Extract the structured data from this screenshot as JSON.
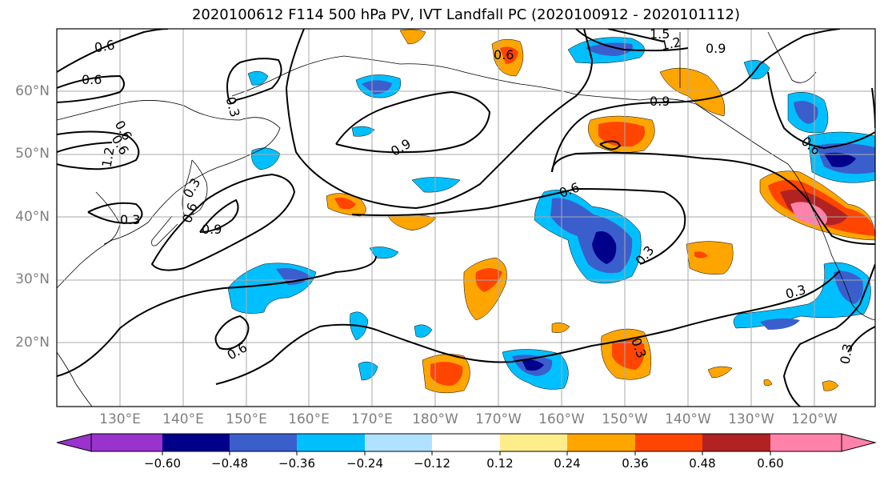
{
  "title": "2020100612 F114 500 hPa PV, IVT Landfall PC (2020100912 - 2020101112)",
  "lat_labels": [
    "60°N",
    "50°N",
    "40°N",
    "30°N",
    "20°N"
  ],
  "lon_labels": [
    "130°E",
    "140°E",
    "150°E",
    "160°E",
    "170°E",
    "180°W",
    "170°W",
    "160°W",
    "150°W",
    "140°W",
    "130°W",
    "120°W"
  ],
  "contour_labels": [
    "0.6",
    "0.6",
    "0.3",
    "0.6",
    "0.6",
    "1.2",
    "0.3",
    "0.9",
    "0.6",
    "0.9",
    "0.6",
    "1.5",
    "1.2",
    "0.9",
    "0.9",
    "0.6",
    "0.6",
    "0.3",
    "0.3",
    "0.3",
    "0.3",
    "0.6",
    "0.3"
  ],
  "colorbar": {
    "ticks": [
      "−0.60",
      "−0.48",
      "−0.36",
      "−0.24",
      "−0.12",
      "0.12",
      "0.24",
      "0.36",
      "0.48",
      "0.60"
    ],
    "colors": [
      "#9a32cd",
      "#00008b",
      "#3a5fcd",
      "#00bfff",
      "#b0e2ff",
      "#ffffff",
      "#ffec8b",
      "#ffa500",
      "#ff4500",
      "#b22222",
      "#ff82ab"
    ]
  }
}
